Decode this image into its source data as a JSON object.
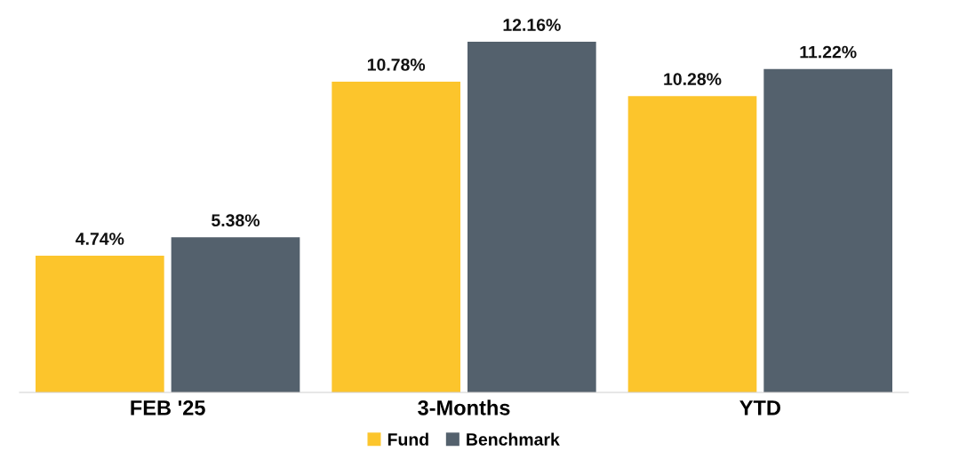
{
  "chart_data": {
    "type": "bar",
    "categories": [
      "FEB '25",
      "3-Months",
      "YTD"
    ],
    "series": [
      {
        "name": "Fund",
        "color": "#fcc52c",
        "values": [
          4.74,
          10.78,
          10.28
        ],
        "value_labels": [
          "4.74%",
          "10.78%",
          "10.28%"
        ]
      },
      {
        "name": "Benchmark",
        "color": "#54616d",
        "values": [
          5.38,
          12.16,
          11.22
        ],
        "value_labels": [
          "5.38%",
          "12.16%",
          "11.22%"
        ]
      }
    ],
    "legend": "bottom",
    "grid": false
  }
}
